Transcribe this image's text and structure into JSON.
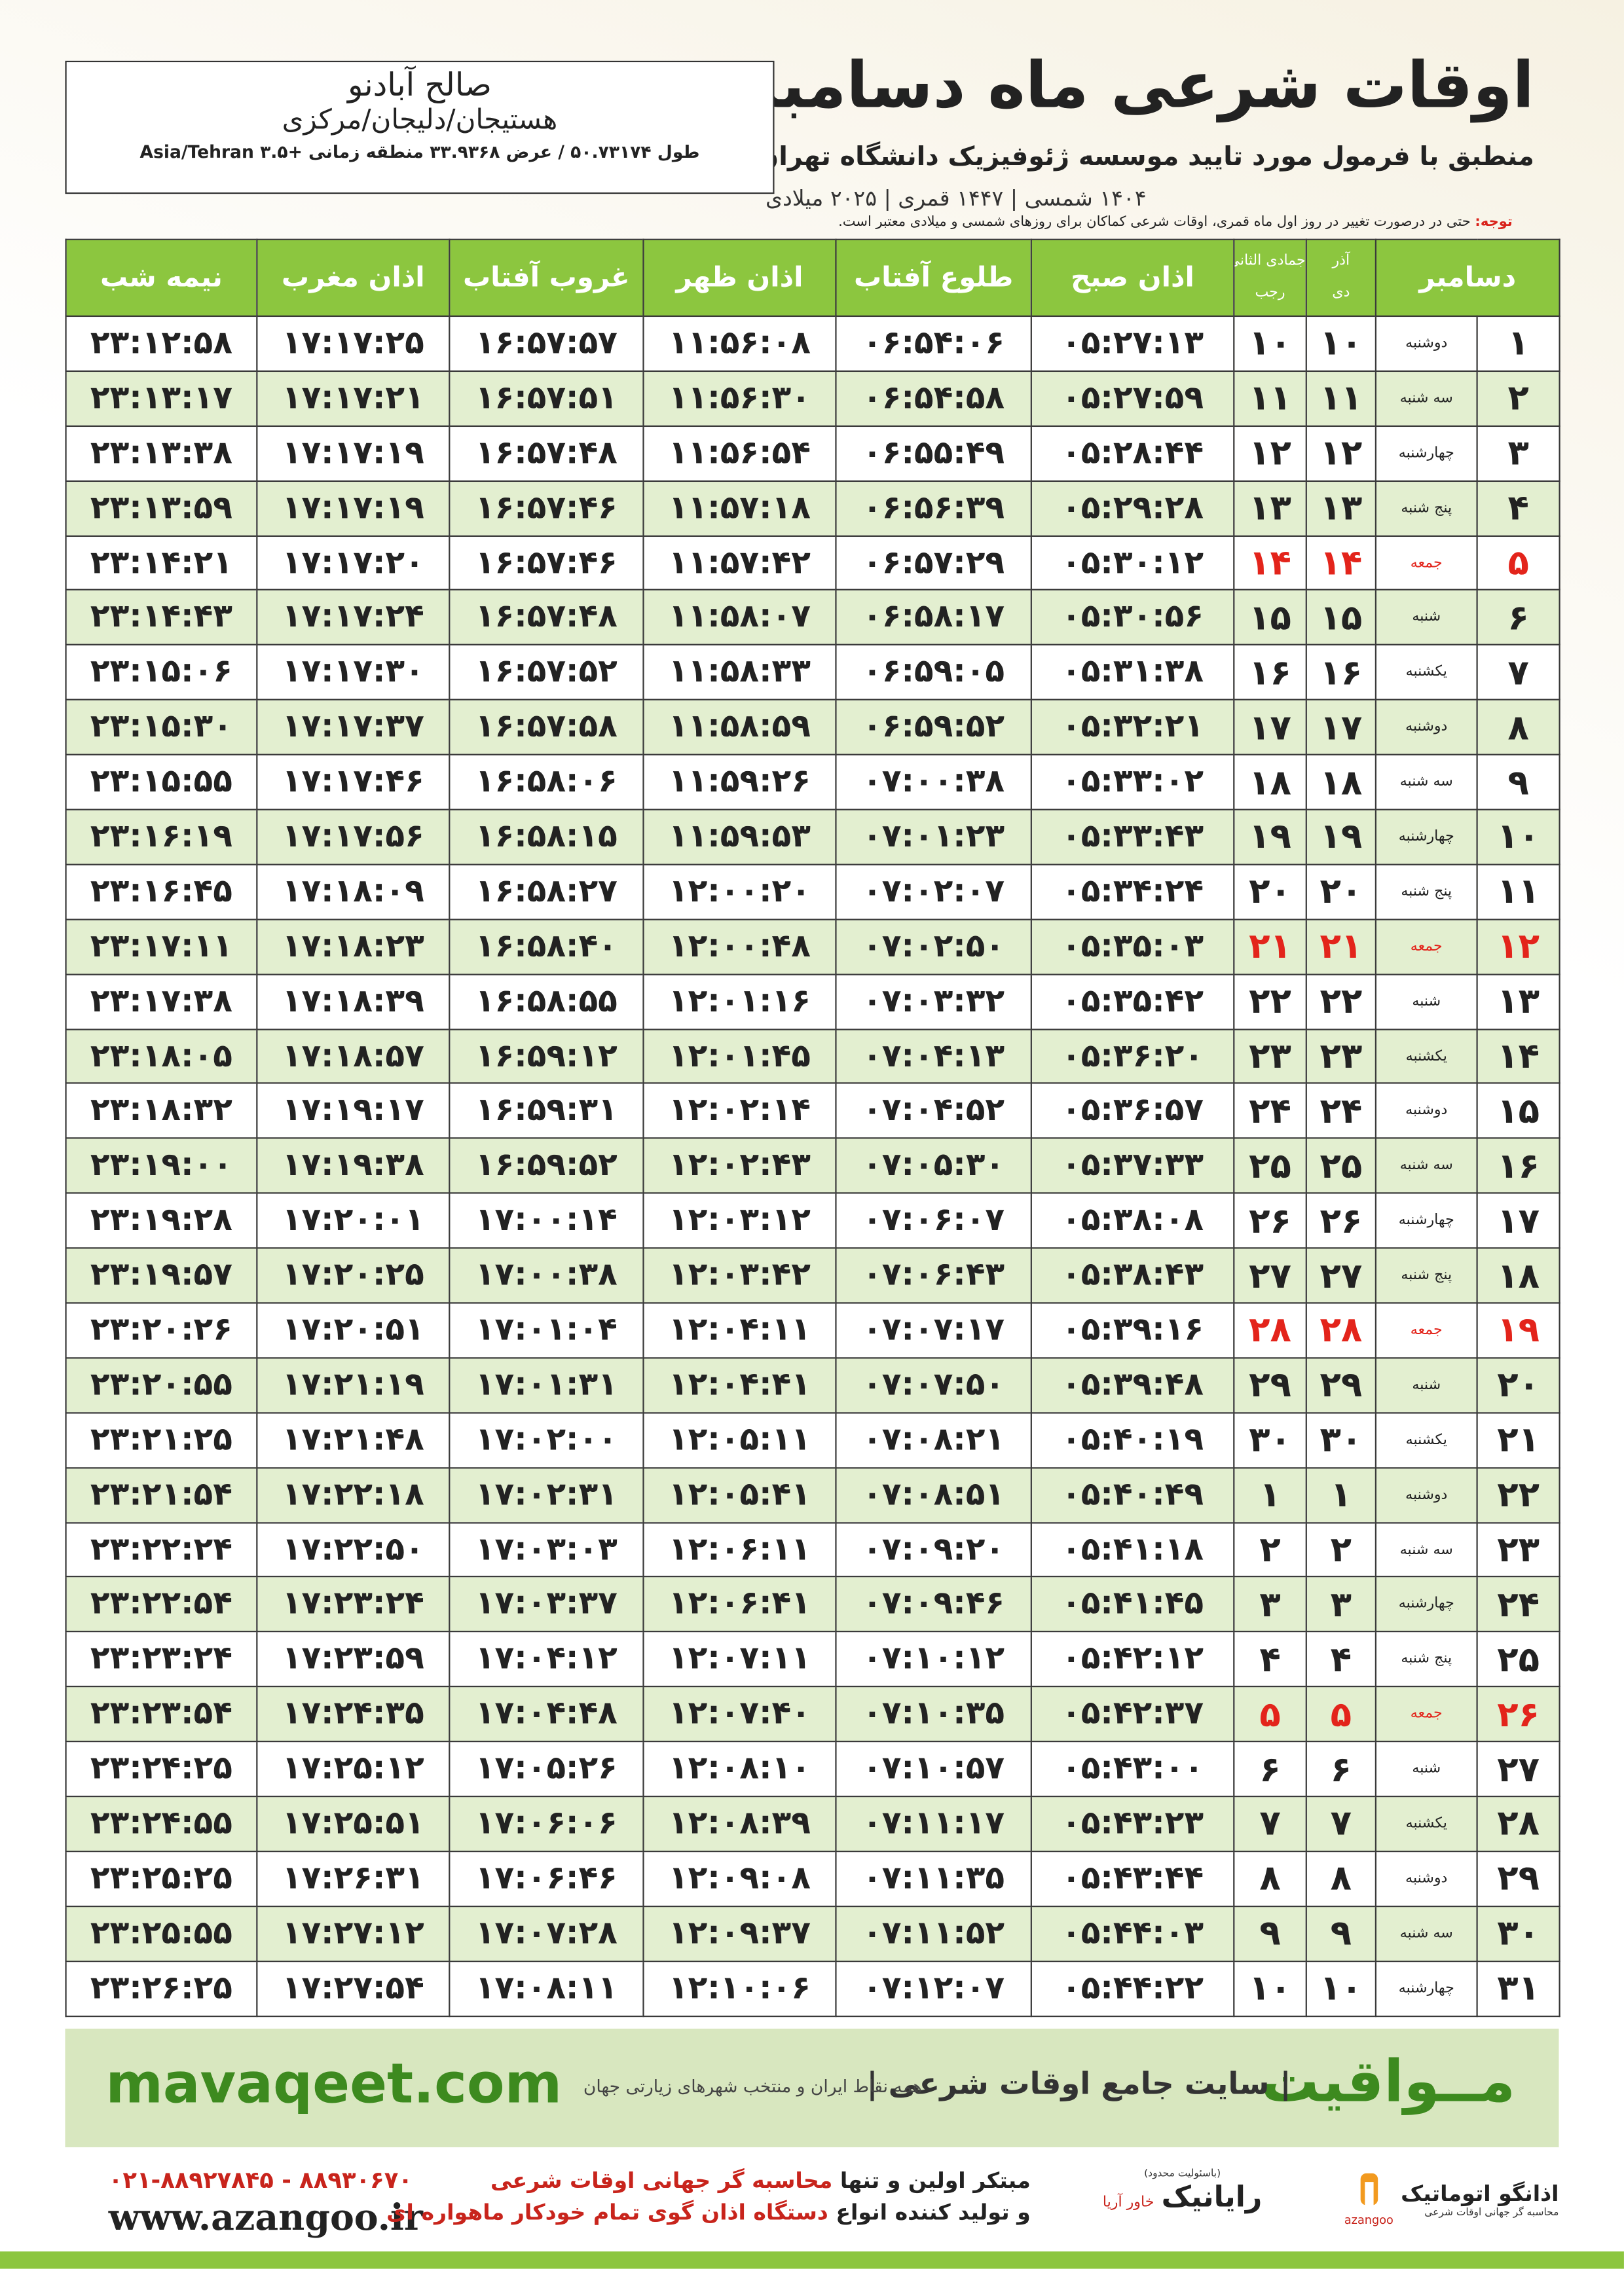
{
  "header": {
    "title": "اوقات شرعی ماه دسامبر",
    "subtitle": "منطبق با فرمول مورد تایید موسسه ژئوفیزیک دانشگاه تهران",
    "dates": "۱۴۰۴ شمسی | ۱۴۴۷ قمری | ۲۰۲۵ میلادی"
  },
  "location": {
    "name": "صالح آبادنو",
    "region": "هستیجان/دلیجان/مرکزی",
    "coords": "طول ۵۰.۷۳۱۷۴ / عرض ۳۳.۹۳۶۸ منطقه زمانی +۳.۵ Asia/Tehran"
  },
  "note": {
    "label": "توجه:",
    "text": "حتی در درصورت تغییر در روز اول ماه قمری، اوقات شرعی کماکان برای روزهای شمسی و میلادی معتبر است."
  },
  "table": {
    "header_color": "#8cc63f",
    "stripe_colors": [
      "#ffffff",
      "#e3efd0"
    ],
    "headers": {
      "day": "دسامبر",
      "solar_top": "آذر",
      "solar_bottom": "دی",
      "lunar_top": "جمادی الثانی",
      "lunar_bottom": "رجب",
      "fajr": "اذان صبح",
      "sunrise": "طلوع آفتاب",
      "dhuhr": "اذان ظهر",
      "sunset": "غروب آفتاب",
      "maghrib": "اذان مغرب",
      "midnight": "نیمه شب"
    },
    "date_colors": [
      "#222222",
      "#222222",
      "#222222",
      "#222222",
      "#e3241b",
      "#222222",
      "#222222",
      "#222222",
      "#222222",
      "#222222",
      "#222222",
      "#e3241b",
      "#222222",
      "#222222",
      "#222222",
      "#222222",
      "#222222",
      "#222222",
      "#e3241b",
      "#222222",
      "#222222",
      "#222222",
      "#222222",
      "#222222",
      "#222222",
      "#e3241b",
      "#222222",
      "#222222",
      "#222222",
      "#222222",
      "#222222"
    ],
    "rows": [
      [
        "۱",
        "دوشنبه",
        "۱۰",
        "۱۰",
        "۰۵:۲۷:۱۳",
        "۰۶:۵۴:۰۶",
        "۱۱:۵۶:۰۸",
        "۱۶:۵۷:۵۷",
        "۱۷:۱۷:۲۵",
        "۲۳:۱۲:۵۸"
      ],
      [
        "۲",
        "سه شنبه",
        "۱۱",
        "۱۱",
        "۰۵:۲۷:۵۹",
        "۰۶:۵۴:۵۸",
        "۱۱:۵۶:۳۰",
        "۱۶:۵۷:۵۱",
        "۱۷:۱۷:۲۱",
        "۲۳:۱۳:۱۷"
      ],
      [
        "۳",
        "چهارشنبه",
        "۱۲",
        "۱۲",
        "۰۵:۲۸:۴۴",
        "۰۶:۵۵:۴۹",
        "۱۱:۵۶:۵۴",
        "۱۶:۵۷:۴۸",
        "۱۷:۱۷:۱۹",
        "۲۳:۱۳:۳۸"
      ],
      [
        "۴",
        "پنج شنبه",
        "۱۳",
        "۱۳",
        "۰۵:۲۹:۲۸",
        "۰۶:۵۶:۳۹",
        "۱۱:۵۷:۱۸",
        "۱۶:۵۷:۴۶",
        "۱۷:۱۷:۱۹",
        "۲۳:۱۳:۵۹"
      ],
      [
        "۵",
        "جمعه",
        "۱۴",
        "۱۴",
        "۰۵:۳۰:۱۲",
        "۰۶:۵۷:۲۹",
        "۱۱:۵۷:۴۲",
        "۱۶:۵۷:۴۶",
        "۱۷:۱۷:۲۰",
        "۲۳:۱۴:۲۱"
      ],
      [
        "۶",
        "شنبه",
        "۱۵",
        "۱۵",
        "۰۵:۳۰:۵۶",
        "۰۶:۵۸:۱۷",
        "۱۱:۵۸:۰۷",
        "۱۶:۵۷:۴۸",
        "۱۷:۱۷:۲۴",
        "۲۳:۱۴:۴۳"
      ],
      [
        "۷",
        "یکشنبه",
        "۱۶",
        "۱۶",
        "۰۵:۳۱:۳۸",
        "۰۶:۵۹:۰۵",
        "۱۱:۵۸:۳۳",
        "۱۶:۵۷:۵۲",
        "۱۷:۱۷:۳۰",
        "۲۳:۱۵:۰۶"
      ],
      [
        "۸",
        "دوشنبه",
        "۱۷",
        "۱۷",
        "۰۵:۳۲:۲۱",
        "۰۶:۵۹:۵۲",
        "۱۱:۵۸:۵۹",
        "۱۶:۵۷:۵۸",
        "۱۷:۱۷:۳۷",
        "۲۳:۱۵:۳۰"
      ],
      [
        "۹",
        "سه شنبه",
        "۱۸",
        "۱۸",
        "۰۵:۳۳:۰۲",
        "۰۷:۰۰:۳۸",
        "۱۱:۵۹:۲۶",
        "۱۶:۵۸:۰۶",
        "۱۷:۱۷:۴۶",
        "۲۳:۱۵:۵۵"
      ],
      [
        "۱۰",
        "چهارشنبه",
        "۱۹",
        "۱۹",
        "۰۵:۳۳:۴۳",
        "۰۷:۰۱:۲۳",
        "۱۱:۵۹:۵۳",
        "۱۶:۵۸:۱۵",
        "۱۷:۱۷:۵۶",
        "۲۳:۱۶:۱۹"
      ],
      [
        "۱۱",
        "پنج شنبه",
        "۲۰",
        "۲۰",
        "۰۵:۳۴:۲۴",
        "۰۷:۰۲:۰۷",
        "۱۲:۰۰:۲۰",
        "۱۶:۵۸:۲۷",
        "۱۷:۱۸:۰۹",
        "۲۳:۱۶:۴۵"
      ],
      [
        "۱۲",
        "جمعه",
        "۲۱",
        "۲۱",
        "۰۵:۳۵:۰۳",
        "۰۷:۰۲:۵۰",
        "۱۲:۰۰:۴۸",
        "۱۶:۵۸:۴۰",
        "۱۷:۱۸:۲۳",
        "۲۳:۱۷:۱۱"
      ],
      [
        "۱۳",
        "شنبه",
        "۲۲",
        "۲۲",
        "۰۵:۳۵:۴۲",
        "۰۷:۰۳:۳۲",
        "۱۲:۰۱:۱۶",
        "۱۶:۵۸:۵۵",
        "۱۷:۱۸:۳۹",
        "۲۳:۱۷:۳۸"
      ],
      [
        "۱۴",
        "یکشنبه",
        "۲۳",
        "۲۳",
        "۰۵:۳۶:۲۰",
        "۰۷:۰۴:۱۳",
        "۱۲:۰۱:۴۵",
        "۱۶:۵۹:۱۲",
        "۱۷:۱۸:۵۷",
        "۲۳:۱۸:۰۵"
      ],
      [
        "۱۵",
        "دوشنبه",
        "۲۴",
        "۲۴",
        "۰۵:۳۶:۵۷",
        "۰۷:۰۴:۵۲",
        "۱۲:۰۲:۱۴",
        "۱۶:۵۹:۳۱",
        "۱۷:۱۹:۱۷",
        "۲۳:۱۸:۳۲"
      ],
      [
        "۱۶",
        "سه شنبه",
        "۲۵",
        "۲۵",
        "۰۵:۳۷:۳۳",
        "۰۷:۰۵:۳۰",
        "۱۲:۰۲:۴۳",
        "۱۶:۵۹:۵۲",
        "۱۷:۱۹:۳۸",
        "۲۳:۱۹:۰۰"
      ],
      [
        "۱۷",
        "چهارشنبه",
        "۲۶",
        "۲۶",
        "۰۵:۳۸:۰۸",
        "۰۷:۰۶:۰۷",
        "۱۲:۰۳:۱۲",
        "۱۷:۰۰:۱۴",
        "۱۷:۲۰:۰۱",
        "۲۳:۱۹:۲۸"
      ],
      [
        "۱۸",
        "پنج شنبه",
        "۲۷",
        "۲۷",
        "۰۵:۳۸:۴۳",
        "۰۷:۰۶:۴۳",
        "۱۲:۰۳:۴۲",
        "۱۷:۰۰:۳۸",
        "۱۷:۲۰:۲۵",
        "۲۳:۱۹:۵۷"
      ],
      [
        "۱۹",
        "جمعه",
        "۲۸",
        "۲۸",
        "۰۵:۳۹:۱۶",
        "۰۷:۰۷:۱۷",
        "۱۲:۰۴:۱۱",
        "۱۷:۰۱:۰۴",
        "۱۷:۲۰:۵۱",
        "۲۳:۲۰:۲۶"
      ],
      [
        "۲۰",
        "شنبه",
        "۲۹",
        "۲۹",
        "۰۵:۳۹:۴۸",
        "۰۷:۰۷:۵۰",
        "۱۲:۰۴:۴۱",
        "۱۷:۰۱:۳۱",
        "۱۷:۲۱:۱۹",
        "۲۳:۲۰:۵۵"
      ],
      [
        "۲۱",
        "یکشنبه",
        "۳۰",
        "۳۰",
        "۰۵:۴۰:۱۹",
        "۰۷:۰۸:۲۱",
        "۱۲:۰۵:۱۱",
        "۱۷:۰۲:۰۰",
        "۱۷:۲۱:۴۸",
        "۲۳:۲۱:۲۵"
      ],
      [
        "۲۲",
        "دوشنبه",
        "۱",
        "۱",
        "۰۵:۴۰:۴۹",
        "۰۷:۰۸:۵۱",
        "۱۲:۰۵:۴۱",
        "۱۷:۰۲:۳۱",
        "۱۷:۲۲:۱۸",
        "۲۳:۲۱:۵۴"
      ],
      [
        "۲۳",
        "سه شنبه",
        "۲",
        "۲",
        "۰۵:۴۱:۱۸",
        "۰۷:۰۹:۲۰",
        "۱۲:۰۶:۱۱",
        "۱۷:۰۳:۰۳",
        "۱۷:۲۲:۵۰",
        "۲۳:۲۲:۲۴"
      ],
      [
        "۲۴",
        "چهارشنبه",
        "۳",
        "۳",
        "۰۵:۴۱:۴۵",
        "۰۷:۰۹:۴۶",
        "۱۲:۰۶:۴۱",
        "۱۷:۰۳:۳۷",
        "۱۷:۲۳:۲۴",
        "۲۳:۲۲:۵۴"
      ],
      [
        "۲۵",
        "پنج شنبه",
        "۴",
        "۴",
        "۰۵:۴۲:۱۲",
        "۰۷:۱۰:۱۲",
        "۱۲:۰۷:۱۱",
        "۱۷:۰۴:۱۲",
        "۱۷:۲۳:۵۹",
        "۲۳:۲۳:۲۴"
      ],
      [
        "۲۶",
        "جمعه",
        "۵",
        "۵",
        "۰۵:۴۲:۳۷",
        "۰۷:۱۰:۳۵",
        "۱۲:۰۷:۴۰",
        "۱۷:۰۴:۴۸",
        "۱۷:۲۴:۳۵",
        "۲۳:۲۳:۵۴"
      ],
      [
        "۲۷",
        "شنبه",
        "۶",
        "۶",
        "۰۵:۴۳:۰۰",
        "۰۷:۱۰:۵۷",
        "۱۲:۰۸:۱۰",
        "۱۷:۰۵:۲۶",
        "۱۷:۲۵:۱۲",
        "۲۳:۲۴:۲۵"
      ],
      [
        "۲۸",
        "یکشنبه",
        "۷",
        "۷",
        "۰۵:۴۳:۲۳",
        "۰۷:۱۱:۱۷",
        "۱۲:۰۸:۳۹",
        "۱۷:۰۶:۰۶",
        "۱۷:۲۵:۵۱",
        "۲۳:۲۴:۵۵"
      ],
      [
        "۲۹",
        "دوشنبه",
        "۸",
        "۸",
        "۰۵:۴۳:۴۴",
        "۰۷:۱۱:۳۵",
        "۱۲:۰۹:۰۸",
        "۱۷:۰۶:۴۶",
        "۱۷:۲۶:۳۱",
        "۲۳:۲۵:۲۵"
      ],
      [
        "۳۰",
        "سه شنبه",
        "۹",
        "۹",
        "۰۵:۴۴:۰۳",
        "۰۷:۱۱:۵۲",
        "۱۲:۰۹:۳۷",
        "۱۷:۰۷:۲۸",
        "۱۷:۲۷:۱۲",
        "۲۳:۲۵:۵۵"
      ],
      [
        "۳۱",
        "چهارشنبه",
        "۱۰",
        "۱۰",
        "۰۵:۴۴:۲۲",
        "۰۷:۱۲:۰۷",
        "۱۲:۱۰:۰۶",
        "۱۷:۰۸:۱۱",
        "۱۷:۲۷:۵۴",
        "۲۳:۲۶:۲۵"
      ]
    ]
  },
  "footer": {
    "site": "mavaqeet.com",
    "brand": "مــواقیت",
    "brand_desc": "| سایت جامع اوقات شرعی |",
    "brand_sub": "همه نقاط ایران و منتخب شهرهای زیارتی جهان"
  },
  "contact": {
    "phone": "۰۲۱-۸۸۹۲۷۸۴۵ - ۸۸۹۳۰۶۷۰",
    "url": "www.azangoo.ir",
    "promo1_a": "مبتکر اولین و تنها",
    "promo1_b": "محاسبه گر جهانی اوقات شرعی",
    "promo2_a": "و تولید کننده انواع",
    "promo2_b": "دستگاه اذان گوی تمام خودکار ماهواره ای"
  },
  "logos": {
    "rayanik": "رایانیک",
    "khavar": "خاور آریا",
    "limited": "(باسئولیت محدود)",
    "azangoo_fa": "اذانگو اتوماتیک",
    "azangoo_sub": "محاسبه گر جهانی اوقات شرعی",
    "azangoo_en": "azangoo"
  }
}
